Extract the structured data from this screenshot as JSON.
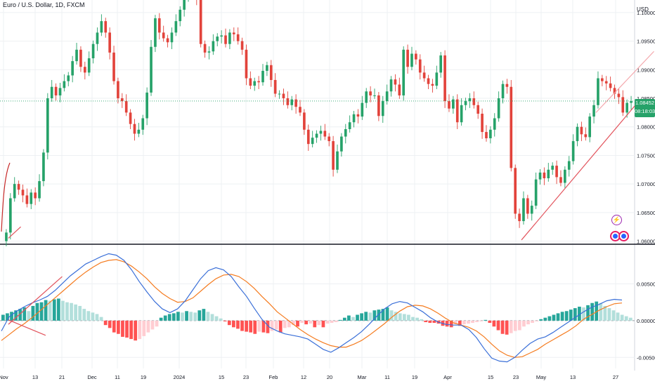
{
  "header": {
    "title": "Euro / U.S. Dollar, 1D, FXCM",
    "currency": "USD"
  },
  "price_tag": {
    "price": "1.08452",
    "countdown": "08:18:03",
    "color": "#26a269"
  },
  "markers": {
    "flash": "⚡"
  },
  "colors": {
    "up": "#26a269",
    "down": "#e2433b",
    "macd": "#3a6fd8",
    "signal": "#f57c20",
    "hist_up_strong": "#26a69a",
    "hist_up_weak": "#b2dfdb",
    "hist_down_strong": "#ff5252",
    "hist_down_weak": "#ffcdd2",
    "trendline": "#e2535c"
  },
  "chart_data": [
    {
      "type": "candlestick",
      "title": "Euro / U.S. Dollar, 1D, FXCM",
      "y_ticks": [
        "1.10000",
        "1.09500",
        "1.09000",
        "1.08500",
        "1.08000",
        "1.07500",
        "1.07000",
        "1.06500",
        "1.06000"
      ],
      "ylim": [
        1.0597,
        1.1022
      ],
      "x_tick_labels": [
        "Nov",
        "13",
        "21",
        "Dec",
        "11",
        "19",
        "2024",
        "15",
        "23",
        "Feb",
        "12",
        "20",
        "Mar",
        "11",
        "19",
        "Apr",
        "15",
        "23",
        "May",
        "13",
        "27"
      ],
      "closes": [
        1.0615,
        1.0675,
        1.07,
        1.069,
        1.068,
        1.0665,
        1.0685,
        1.0675,
        1.0705,
        1.0755,
        1.085,
        1.087,
        1.0855,
        1.0868,
        1.088,
        1.089,
        1.0915,
        1.0935,
        1.0905,
        1.0895,
        1.092,
        1.0945,
        1.0965,
        1.0985,
        1.0965,
        1.093,
        1.088,
        1.085,
        1.0845,
        1.0825,
        1.0805,
        1.0788,
        1.0795,
        1.0815,
        1.086,
        1.094,
        1.099,
        1.0965,
        1.0955,
        1.0948,
        1.0965,
        1.0985,
        1.1005,
        1.1025,
        1.104,
        1.1055,
        1.1025,
        1.0945,
        1.093,
        1.0932,
        1.095,
        1.0958,
        1.096,
        1.0945,
        1.0965,
        1.0962,
        1.095,
        1.0935,
        1.0885,
        1.0872,
        1.088,
        1.0878,
        1.0898,
        1.0908,
        1.0882,
        1.0858,
        1.0858,
        1.085,
        1.0838,
        1.0848,
        1.0835,
        1.0825,
        1.0795,
        1.077,
        1.0781,
        1.0788,
        1.0793,
        1.0783,
        1.0775,
        1.0725,
        1.0757,
        1.0783,
        1.0796,
        1.0808,
        1.0822,
        1.0818,
        1.0842,
        1.0862,
        1.0855,
        1.0855,
        1.0819,
        1.0845,
        1.0862,
        1.0883,
        1.0874,
        1.0855,
        1.0935,
        1.0905,
        1.0928,
        1.0918,
        1.0895,
        1.0885,
        1.0875,
        1.0872,
        1.0895,
        1.0925,
        1.0845,
        1.0832,
        1.0848,
        1.0808,
        1.0838,
        1.0845,
        1.085,
        1.0838,
        1.0823,
        1.0791,
        1.078,
        1.0795,
        1.0815,
        1.085,
        1.0875,
        1.087,
        1.0728,
        1.0648,
        1.0635,
        1.0675,
        1.0648,
        1.0662,
        1.0708,
        1.072,
        1.071,
        1.0725,
        1.0732,
        1.0712,
        1.0702,
        1.0725,
        1.074,
        1.0775,
        1.08,
        1.0787,
        1.0782,
        1.0818,
        1.0838,
        1.0885,
        1.088,
        1.0876,
        1.0868,
        1.0858,
        1.0852,
        1.0825,
        1.0842,
        1.0845
      ],
      "opens": [
        1.06,
        1.0615,
        1.0675,
        1.07,
        1.069,
        1.068,
        1.0665,
        1.0685,
        1.0675,
        1.0705,
        1.0755,
        1.085,
        1.087,
        1.0855,
        1.0868,
        1.088,
        1.089,
        1.0915,
        1.0935,
        1.0905,
        1.0895,
        1.092,
        1.0945,
        1.0965,
        1.0985,
        1.0965,
        1.093,
        1.088,
        1.085,
        1.0845,
        1.0825,
        1.0805,
        1.0788,
        1.0795,
        1.0815,
        1.086,
        1.094,
        1.099,
        1.0965,
        1.0955,
        1.0948,
        1.0965,
        1.0985,
        1.1005,
        1.1025,
        1.104,
        1.1055,
        1.1025,
        1.0945,
        1.093,
        1.0932,
        1.095,
        1.0958,
        1.096,
        1.0945,
        1.0965,
        1.0962,
        1.095,
        1.0935,
        1.0885,
        1.0872,
        1.088,
        1.0878,
        1.0898,
        1.0908,
        1.0882,
        1.0858,
        1.0858,
        1.085,
        1.0838,
        1.0848,
        1.0835,
        1.0825,
        1.0795,
        1.077,
        1.0781,
        1.0788,
        1.0793,
        1.0783,
        1.0775,
        1.0725,
        1.0757,
        1.0783,
        1.0796,
        1.0808,
        1.0822,
        1.0818,
        1.0842,
        1.0862,
        1.0855,
        1.0855,
        1.0819,
        1.0845,
        1.0862,
        1.0883,
        1.0874,
        1.0855,
        1.0935,
        1.0905,
        1.0928,
        1.0918,
        1.0895,
        1.0885,
        1.0875,
        1.0872,
        1.0895,
        1.0925,
        1.0845,
        1.0832,
        1.0848,
        1.0808,
        1.0838,
        1.0845,
        1.085,
        1.0838,
        1.0823,
        1.0791,
        1.078,
        1.0795,
        1.0815,
        1.085,
        1.0875,
        1.087,
        1.0728,
        1.0648,
        1.0635,
        1.0675,
        1.0648,
        1.0662,
        1.0708,
        1.072,
        1.071,
        1.0725,
        1.0732,
        1.0712,
        1.0702,
        1.0725,
        1.074,
        1.0775,
        1.08,
        1.0787,
        1.0782,
        1.0818,
        1.0838,
        1.0885,
        1.088,
        1.0876,
        1.0868,
        1.0858,
        1.0852,
        1.0825,
        1.0842
      ],
      "trendlines": [
        {
          "from": [
            1,
            1.0605
          ],
          "to": [
            4,
            1.0625
          ],
          "color": "#e2535c"
        },
        {
          "from": [
            125,
            1.0602
          ],
          "to": [
            153,
            1.0842
          ],
          "color": "#e2535c"
        }
      ],
      "channel_upper": {
        "from": [
          143,
          1.0825
        ],
        "to": [
          157,
          1.0932
        ]
      },
      "current_price": 1.08452
    },
    {
      "type": "macd",
      "y_ticks": [
        "0.00500",
        "0.00000",
        "-0.00500"
      ],
      "ylim": [
        -0.0065,
        0.0102
      ],
      "macd_points": [
        -0.0014,
        0.0005,
        0.0013,
        0.0019,
        0.0024,
        0.0028,
        0.0033,
        0.0041,
        0.0051,
        0.0061,
        0.0069,
        0.0077,
        0.0082,
        0.0087,
        0.0091,
        0.0089,
        0.0082,
        0.0069,
        0.0053,
        0.0039,
        0.0026,
        0.0016,
        0.0011,
        0.0016,
        0.0027,
        0.0042,
        0.0057,
        0.0068,
        0.0072,
        0.0069,
        0.006,
        0.0046,
        0.0033,
        0.0017,
        0.0002,
        -0.0009,
        -0.0014,
        -0.0018,
        -0.002,
        -0.0022,
        -0.0025,
        -0.0032,
        -0.0039,
        -0.0043,
        -0.0037,
        -0.003,
        -0.0023,
        -0.0015,
        -0.0005,
        0.0006,
        0.0016,
        0.0023,
        0.0026,
        0.0024,
        0.0018,
        0.0012,
        0.0004,
        -0.0002,
        -0.0005,
        -0.0006,
        -0.0006,
        -0.0012,
        -0.0023,
        -0.0038,
        -0.0051,
        -0.0055,
        -0.0056,
        -0.005,
        -0.004,
        -0.0031,
        -0.0025,
        -0.0022,
        -0.0016,
        -0.0009,
        -0.0002,
        0.0005,
        0.0012,
        0.0018,
        0.0022,
        0.0027,
        0.0029,
        0.0028
      ],
      "signal_points": [
        -0.0027,
        -0.0019,
        -0.0011,
        -0.0004,
        0.0004,
        0.0013,
        0.0022,
        0.0031,
        0.004,
        0.0049,
        0.0058,
        0.0066,
        0.0073,
        0.0079,
        0.0082,
        0.0083,
        0.008,
        0.0074,
        0.0066,
        0.0057,
        0.0046,
        0.0037,
        0.003,
        0.0025,
        0.0026,
        0.0031,
        0.004,
        0.0049,
        0.0057,
        0.0062,
        0.0063,
        0.006,
        0.0053,
        0.0044,
        0.0033,
        0.0023,
        0.0012,
        0.0004,
        -0.0004,
        -0.0012,
        -0.0019,
        -0.0025,
        -0.003,
        -0.0034,
        -0.0036,
        -0.0036,
        -0.0032,
        -0.0027,
        -0.002,
        -0.0012,
        -0.0004,
        0.0005,
        0.0013,
        0.0019,
        0.0021,
        0.002,
        0.0016,
        0.001,
        0.0003,
        -0.0003,
        -0.0006,
        -0.0009,
        -0.0014,
        -0.0022,
        -0.0032,
        -0.0041,
        -0.0047,
        -0.005,
        -0.0049,
        -0.0044,
        -0.0039,
        -0.0032,
        -0.0026,
        -0.002,
        -0.0014,
        -0.0007,
        0.0002,
        0.0008,
        0.0014,
        0.0019,
        0.0023,
        0.0024
      ],
      "histogram": [
        0.0008,
        0.001,
        0.0012,
        0.0014,
        0.0016,
        0.0018,
        0.0013,
        0.002,
        0.0024,
        0.0025,
        0.0028,
        0.0027,
        0.0029,
        0.003,
        0.0027,
        0.0025,
        0.0024,
        0.0022,
        0.002,
        0.0016,
        0.0013,
        0.0011,
        0.0009,
        0.0005,
        -0.0006,
        -0.001,
        -0.0016,
        -0.0018,
        -0.0022,
        -0.0023,
        -0.0025,
        -0.0027,
        -0.0025,
        -0.0021,
        -0.0016,
        -0.0012,
        -0.0008,
        0.0004,
        0.0007,
        0.0009,
        0.001,
        0.0012,
        0.0011,
        0.0013,
        0.0012,
        0.0011,
        0.0014,
        0.0016,
        0.0012,
        0.0009,
        0.0006,
        0.0003,
        -0.0001,
        -0.0006,
        -0.0009,
        -0.0011,
        -0.0014,
        -0.0015,
        -0.0016,
        -0.0018,
        -0.0015,
        -0.0016,
        -0.0017,
        -0.0014,
        -0.0012,
        -0.0016,
        -0.001,
        -0.0009,
        -0.0006,
        -0.0008,
        -0.0003,
        -0.0005,
        -0.0004,
        -0.0009,
        -0.0006,
        -0.0009,
        -0.0004,
        -0.0003,
        -0.0002,
        0.0001,
        0.0004,
        0.0007,
        0.0005,
        0.0008,
        0.001,
        0.0012,
        0.0011,
        0.0014,
        0.0015,
        0.0016,
        0.0018,
        0.0014,
        0.0012,
        0.001,
        0.0009,
        0.0008,
        0.0005,
        0.0004,
        0.0002,
        -0.0002,
        -0.0003,
        -0.0003,
        -0.0004,
        -0.0007,
        -0.0008,
        -0.0009,
        -0.0005,
        -0.0007,
        -0.0005,
        -0.0004,
        -0.0003,
        -0.0002,
        -0.0001,
        0.0001,
        -0.0003,
        -0.0008,
        -0.0013,
        -0.0018,
        -0.0019,
        -0.0017,
        -0.0014,
        -0.0013,
        -0.0008,
        -0.0005,
        -0.0003,
        -0.0001,
        0.0002,
        0.0004,
        0.0006,
        0.0008,
        0.001,
        0.0012,
        0.0013,
        0.0015,
        0.0017,
        0.0019,
        0.0018,
        0.0021,
        0.0024,
        0.0026,
        0.0024,
        0.002,
        0.0017,
        0.0014,
        0.0011,
        0.0008,
        0.0006,
        0.0004
      ],
      "trendlines": [
        {
          "from": [
            1,
            0.0001
          ],
          "to": [
            10,
            -0.002
          ],
          "color": "#e2535c"
        },
        {
          "from": [
            1,
            -0.0005
          ],
          "to": [
            14,
            0.006
          ],
          "color": "#e2535c"
        }
      ]
    }
  ]
}
